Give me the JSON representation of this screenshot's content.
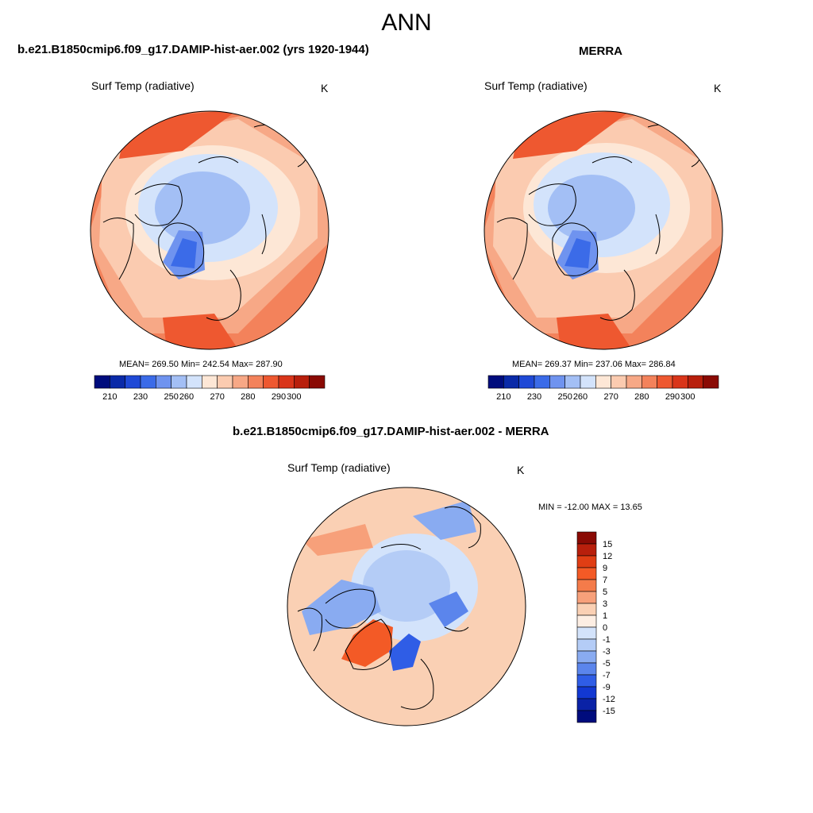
{
  "page": {
    "title": "ANN"
  },
  "panel_model": {
    "title": "b.e21.B1850cmip6.f09_g17.DAMIP-hist-aer.002 (yrs 1920-1944)",
    "variable": "Surf Temp (radiative)",
    "units": "K",
    "stats_text": "MEAN= 269.50  Min= 242.54  Max= 287.90",
    "mean": 269.5,
    "min": 242.54,
    "max": 287.9
  },
  "panel_obs": {
    "title": "MERRA",
    "variable": "Surf Temp (radiative)",
    "units": "K",
    "stats_text": "MEAN= 269.37  Min= 237.06  Max= 286.84",
    "mean": 269.37,
    "min": 237.06,
    "max": 286.84
  },
  "panel_diff": {
    "title": "b.e21.B1850cmip6.f09_g17.DAMIP-hist-aer.002 - MERRA",
    "variable": "Surf Temp (radiative)",
    "units": "K",
    "stats_text": "MIN = -12.00 MAX =  13.65",
    "min": -12.0,
    "max": 13.65
  },
  "colorbar_abs": {
    "colors": [
      "#000c7d",
      "#0a2aa8",
      "#1f49d6",
      "#3b6be8",
      "#6f93ef",
      "#a3bff5",
      "#d3e3fb",
      "#fde7d6",
      "#fbcbb0",
      "#f7a886",
      "#f3825b",
      "#ee5830",
      "#d9351a",
      "#b81f0c",
      "#8a0a04"
    ],
    "labels": [
      "210",
      "230",
      "250",
      "260",
      "270",
      "280",
      "290",
      "300"
    ]
  },
  "colorbar_diff": {
    "colors": [
      "#8a0a04",
      "#b81f0c",
      "#e03e14",
      "#f35a26",
      "#f47b4a",
      "#f7a07a",
      "#fad0b4",
      "#fdeee3",
      "#d3e3fb",
      "#b4ccf6",
      "#89abf1",
      "#5b85ec",
      "#2f5de6",
      "#1238d2",
      "#0a22a6",
      "#000c7d"
    ],
    "labels": [
      "15",
      "12",
      "9",
      "7",
      "5",
      "3",
      "1",
      "0",
      "-1",
      "-3",
      "-5",
      "-7",
      "-9",
      "-12",
      "-15"
    ]
  }
}
